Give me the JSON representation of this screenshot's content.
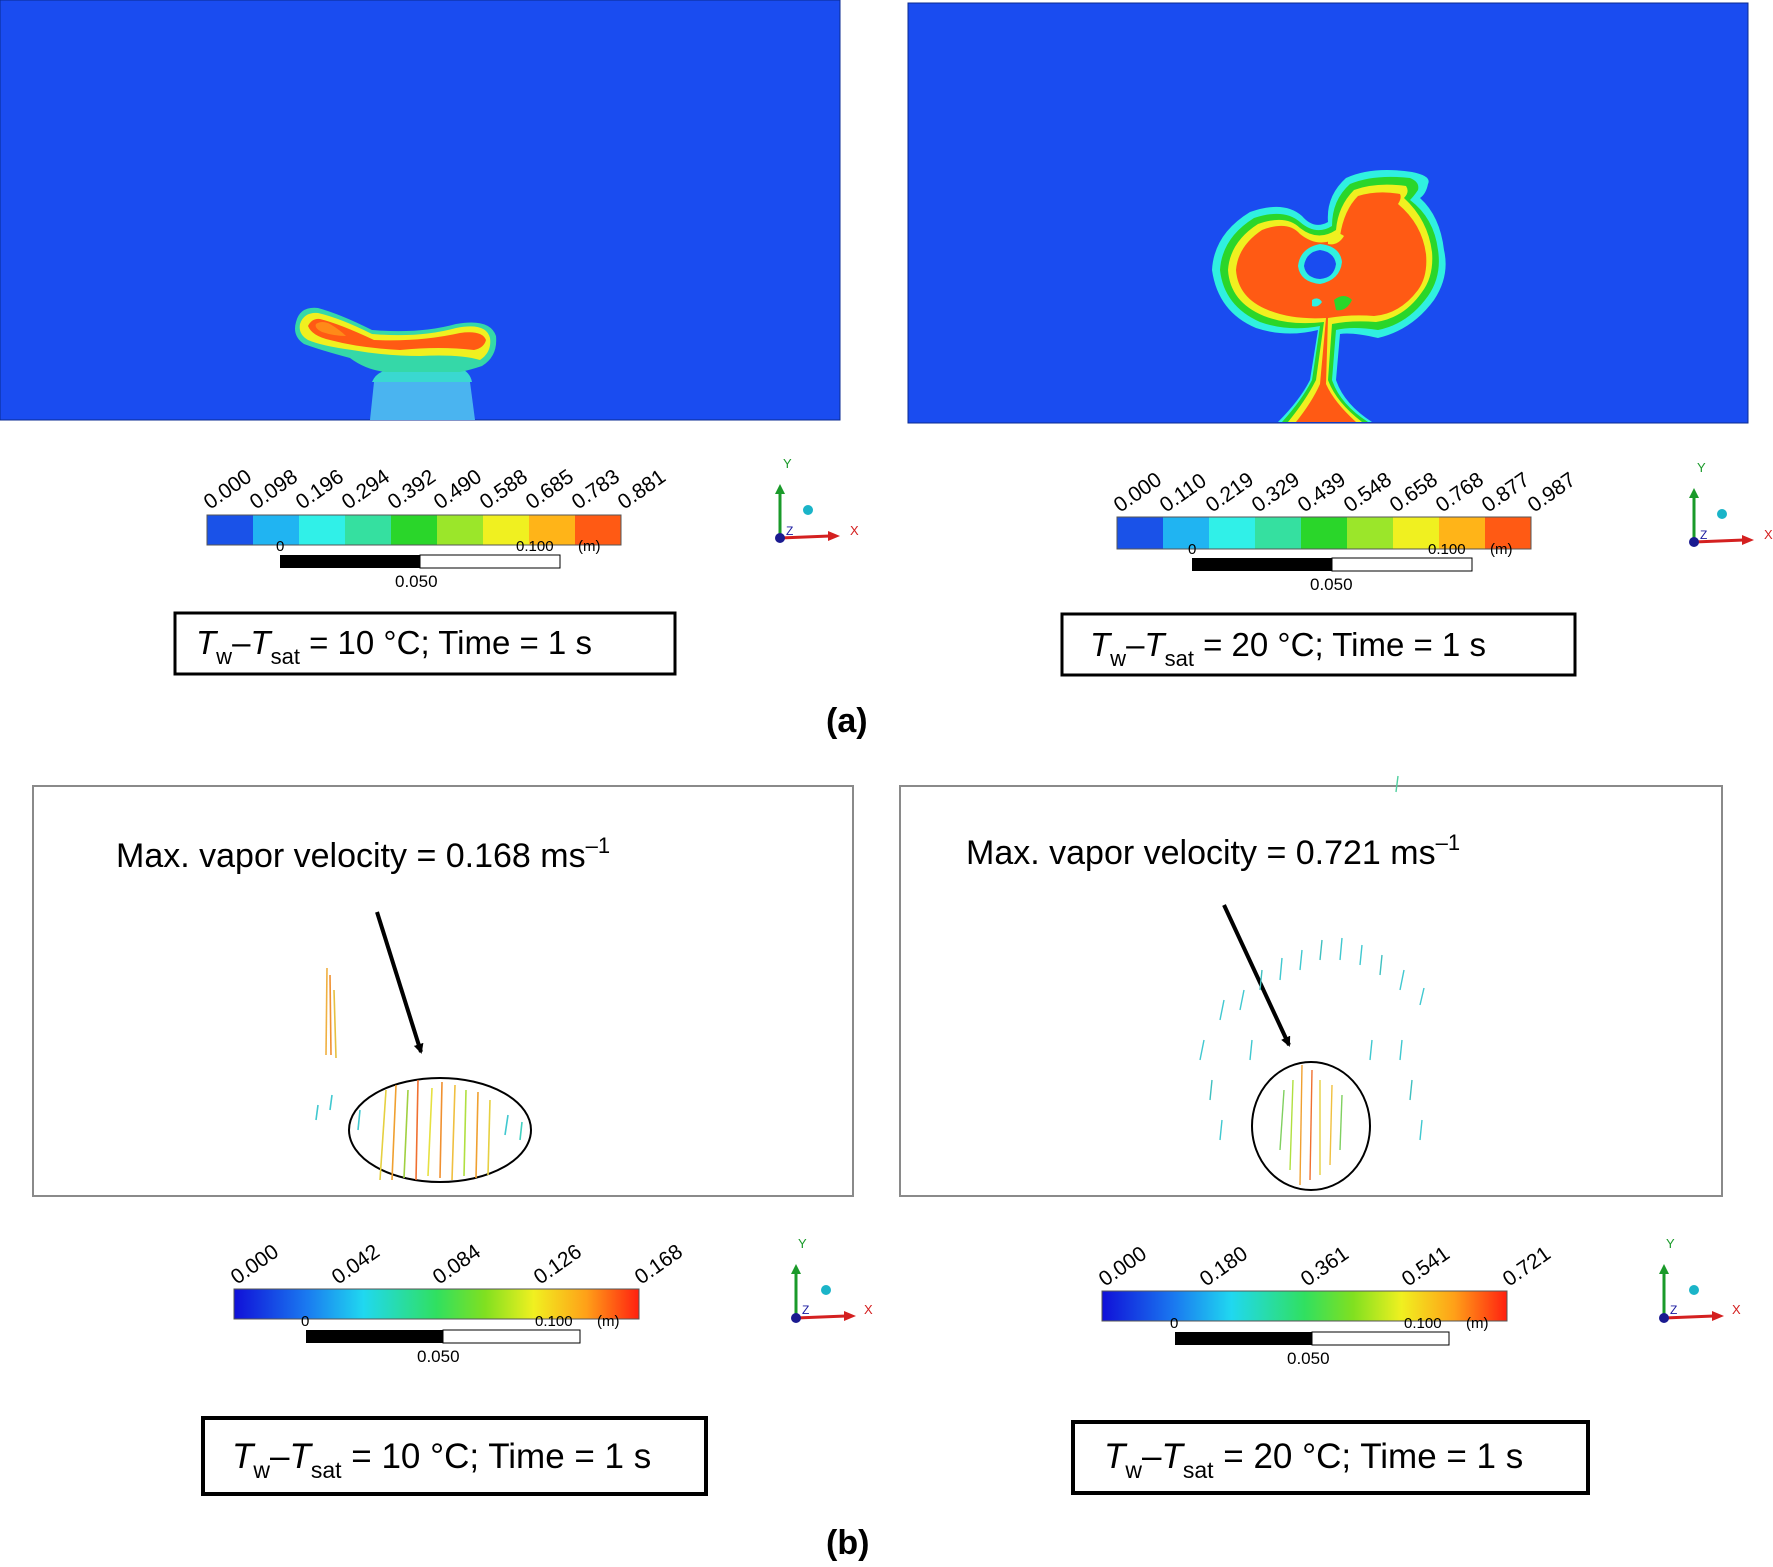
{
  "colors": {
    "background_blue": "#1a4cf0",
    "jet": [
      "#1a52e8",
      "#20b4f2",
      "#30f0e8",
      "#35e0a0",
      "#2ad62a",
      "#9be62a",
      "#f0f020",
      "#ffb418",
      "#ff5a14"
    ],
    "frame_gray": "#8a8a8a"
  },
  "panel_a": {
    "label": "(a)",
    "left": {
      "ticks": [
        "0.000",
        "0.098",
        "0.196",
        "0.294",
        "0.392",
        "0.490",
        "0.588",
        "0.685",
        "0.783",
        "0.881"
      ],
      "scale_zero": "0",
      "scale_mid": "0.050",
      "scale_end": "0.100",
      "scale_unit": "(m)",
      "caption": {
        "t1": "T",
        "s1": "w",
        "dash": "–",
        "t2": "T",
        "s2": "sat",
        "rest": " = 10 °C; Time = 1 s"
      }
    },
    "right": {
      "ticks": [
        "0.000",
        "0.110",
        "0.219",
        "0.329",
        "0.439",
        "0.548",
        "0.658",
        "0.768",
        "0.877",
        "0.987"
      ],
      "scale_zero": "0",
      "scale_mid": "0.050",
      "scale_end": "0.100",
      "scale_unit": "(m)",
      "caption": {
        "t1": "T",
        "s1": "w",
        "dash": "–",
        "t2": "T",
        "s2": "sat",
        "rest": " = 20 °C; Time = 1 s"
      }
    }
  },
  "panel_b": {
    "label": "(b)",
    "left": {
      "annotation": "Max. vapor velocity = 0.168 ms",
      "annotation_sup": "–1",
      "ticks": [
        "0.000",
        "0.042",
        "0.084",
        "0.126",
        "0.168"
      ],
      "scale_zero": "0",
      "scale_mid": "0.050",
      "scale_end": "0.100",
      "scale_unit": "(m)",
      "caption": {
        "t1": "T",
        "s1": "w",
        "dash": "–",
        "t2": "T",
        "s2": "sat",
        "rest": " = 10 °C; Time = 1 s"
      }
    },
    "right": {
      "annotation": "Max. vapor velocity = 0.721 ms",
      "annotation_sup": "–1",
      "ticks": [
        "0.000",
        "0.180",
        "0.361",
        "0.541",
        "0.721"
      ],
      "scale_zero": "0",
      "scale_mid": "0.050",
      "scale_end": "0.100",
      "scale_unit": "(m)",
      "caption": {
        "t1": "T",
        "s1": "w",
        "dash": "–",
        "t2": "T",
        "s2": "sat",
        "rest": " = 20 °C; Time = 1 s"
      }
    }
  },
  "axis_triad": {
    "x": "X",
    "y": "Y",
    "z": "Z"
  }
}
